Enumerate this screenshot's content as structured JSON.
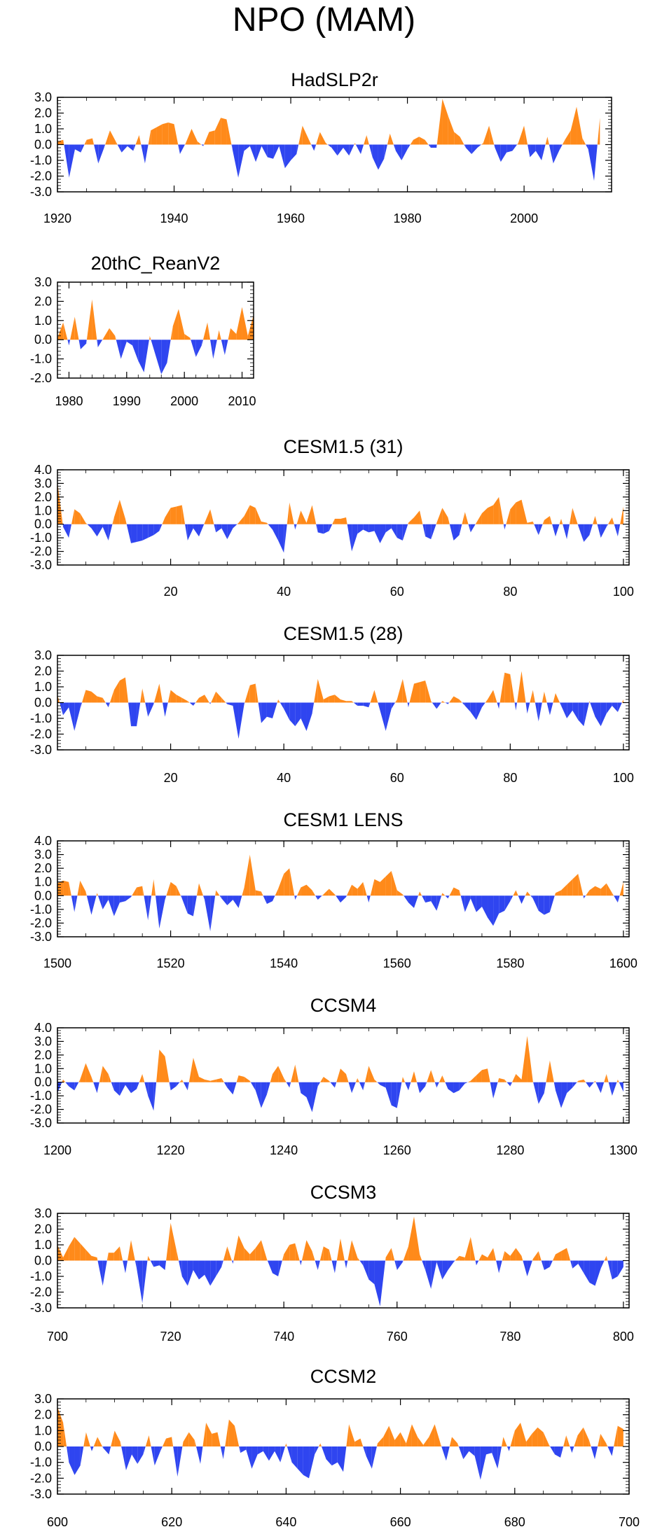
{
  "title": "NPO (MAM)",
  "colors": {
    "positive": "#ff8a1a",
    "negative": "#2f45f0",
    "frame": "#000000"
  },
  "chart_data": [
    {
      "type": "area",
      "title": "HadSLP2r",
      "ylim": [
        -3.0,
        3.0
      ],
      "yticks": [
        "3.0",
        "2.0",
        "1.0",
        "0.0",
        "-1.0",
        "-2.0",
        "-3.0"
      ],
      "xlim": [
        1920,
        2015
      ],
      "xticks": [
        "1920",
        "1940",
        "1960",
        "1980",
        "2000"
      ],
      "x_start": 1920,
      "x_step": 1,
      "values": [
        0.2,
        0.3,
        -2.1,
        -0.3,
        -0.5,
        0.3,
        0.4,
        -1.2,
        -0.2,
        0.9,
        0.2,
        -0.5,
        -0.1,
        -0.4,
        0.6,
        -1.2,
        0.9,
        1.1,
        1.3,
        1.4,
        1.3,
        -0.6,
        0.1,
        1.0,
        0.2,
        -0.1,
        0.8,
        0.9,
        1.7,
        1.6,
        -0.3,
        -2.1,
        -0.4,
        -0.1,
        -1.1,
        -0.1,
        -0.8,
        -0.9,
        -0.1,
        -1.5,
        -1.0,
        -0.6,
        1.2,
        0.4,
        -0.4,
        0.8,
        0.1,
        -0.2,
        -0.7,
        -0.2,
        -0.7,
        0.1,
        -0.6,
        0.6,
        -0.8,
        -1.6,
        -0.9,
        0.7,
        -0.4,
        -1.0,
        -0.3,
        0.3,
        0.5,
        0.3,
        -0.2,
        -0.2,
        2.9,
        1.8,
        0.8,
        0.5,
        -0.2,
        -0.6,
        -0.2,
        0.1,
        1.2,
        -0.2,
        -1.1,
        -0.5,
        -0.4,
        0.1,
        1.2,
        -0.8,
        -0.4,
        -1.0,
        0.5,
        -1.2,
        -0.4,
        0.3,
        0.9,
        2.4,
        0.4,
        -0.3,
        -2.3,
        1.7
      ]
    },
    {
      "type": "area",
      "title": "20thC_ReanV2",
      "ylim": [
        -2.0,
        3.0
      ],
      "yticks": [
        "3.0",
        "2.0",
        "1.0",
        "0.0",
        "-1.0",
        "-2.0"
      ],
      "xlim": [
        1978,
        2012
      ],
      "xticks": [
        "1980",
        "1990",
        "2000",
        "2010"
      ],
      "x_start": 1978,
      "x_step": 1,
      "values": [
        0.1,
        0.9,
        -0.3,
        1.2,
        -0.5,
        -0.2,
        2.1,
        -0.4,
        0.1,
        0.6,
        0.2,
        -1.0,
        -0.1,
        -0.3,
        -1.1,
        -1.7,
        0.2,
        -0.8,
        -1.8,
        -1.2,
        0.7,
        1.6,
        0.3,
        0.1,
        -0.9,
        -0.3,
        0.9,
        -1.0,
        0.5,
        -0.8,
        0.6,
        0.3,
        1.7,
        0.2,
        1.3
      ]
    },
    {
      "type": "area",
      "title": "CESM1.5 (31)",
      "ylim": [
        -3.0,
        4.0
      ],
      "yticks": [
        "4.0",
        "3.0",
        "2.0",
        "1.0",
        "0.0",
        "-1.0",
        "-2.0",
        "-3.0"
      ],
      "xlim": [
        0,
        101
      ],
      "xticks": [
        "20",
        "40",
        "60",
        "80",
        "100"
      ],
      "x_start": 0,
      "x_step": 1,
      "values": [
        3.1,
        -0.2,
        -1.0,
        1.1,
        0.8,
        0.1,
        -0.3,
        -0.9,
        -0.2,
        -1.2,
        0.5,
        1.8,
        0.4,
        -1.4,
        -1.3,
        -1.2,
        -1.0,
        -0.8,
        -0.5,
        0.5,
        1.2,
        1.3,
        1.4,
        -1.2,
        -0.3,
        -0.9,
        0.1,
        1.1,
        -0.6,
        -0.3,
        -1.1,
        -0.3,
        0.1,
        0.6,
        1.4,
        1.2,
        0.2,
        0.1,
        -0.4,
        -1.2,
        -2.1,
        1.6,
        -0.4,
        1.0,
        0.1,
        1.4,
        -0.6,
        -0.7,
        -0.5,
        0.4,
        0.4,
        0.5,
        -2.0,
        -0.7,
        -0.4,
        -0.6,
        -0.5,
        -1.4,
        -0.6,
        -0.3,
        -1.0,
        -1.2,
        0.1,
        0.5,
        1.0,
        -0.9,
        -1.1,
        0.1,
        1.2,
        0.5,
        -1.2,
        -0.8,
        0.9,
        -0.6,
        0.1,
        0.8,
        1.2,
        1.4,
        2.0,
        -0.4,
        1.1,
        1.6,
        1.8,
        0.1,
        0.2,
        -0.8,
        0.3,
        0.6,
        -0.9,
        0.4,
        -1.1,
        1.2,
        -0.1,
        -1.3,
        -0.8,
        0.6,
        -1.0,
        -0.2,
        0.5,
        -0.9,
        1.3
      ]
    },
    {
      "type": "area",
      "title": "CESM1.5 (28)",
      "ylim": [
        -3.0,
        3.0
      ],
      "yticks": [
        "3.0",
        "2.0",
        "1.0",
        "0.0",
        "-1.0",
        "-2.0",
        "-3.0"
      ],
      "xlim": [
        0,
        101
      ],
      "xticks": [
        "20",
        "40",
        "60",
        "80",
        "100"
      ],
      "x_start": 0,
      "x_step": 1,
      "values": [
        0.5,
        -0.8,
        -0.3,
        -1.8,
        -0.4,
        0.8,
        0.7,
        0.4,
        0.3,
        -0.3,
        0.8,
        1.4,
        1.6,
        -1.5,
        -1.5,
        0.9,
        -0.9,
        -0.1,
        1.2,
        -0.9,
        0.8,
        0.5,
        0.3,
        0.1,
        -0.2,
        0.3,
        0.5,
        -0.1,
        0.7,
        0.3,
        -0.1,
        -0.2,
        -2.3,
        -0.1,
        1.1,
        1.2,
        -1.3,
        -0.9,
        -1.0,
        0.2,
        -0.4,
        -1.1,
        -1.5,
        -1.0,
        -1.8,
        -0.7,
        1.5,
        0.2,
        0.4,
        0.5,
        0.2,
        0.1,
        0.1,
        -0.2,
        -0.2,
        -0.3,
        0.8,
        -0.5,
        -1.8,
        -0.4,
        0.2,
        1.5,
        -0.3,
        1.2,
        1.3,
        1.4,
        0.1,
        -0.4,
        0.1,
        -0.1,
        0.4,
        0.2,
        -0.2,
        -0.6,
        -1.1,
        -0.3,
        0.2,
        0.8,
        -0.4,
        1.9,
        1.8,
        -0.5,
        2.0,
        -0.7,
        0.8,
        -1.2,
        0.7,
        -0.8,
        0.6,
        -0.2,
        -1.0,
        -0.5,
        -1.1,
        -1.5,
        0.1,
        -0.9,
        -1.5,
        -0.7,
        -0.2,
        -0.6,
        0.2
      ]
    },
    {
      "type": "area",
      "title": "CESM1 LENS",
      "ylim": [
        -3.0,
        4.0
      ],
      "yticks": [
        "4.0",
        "3.0",
        "2.0",
        "1.0",
        "0.0",
        "-1.0",
        "-2.0",
        "-3.0"
      ],
      "xlim": [
        1500,
        1601
      ],
      "xticks": [
        "1500",
        "1520",
        "1540",
        "1560",
        "1580",
        "1600"
      ],
      "x_start": 1500,
      "x_step": 1,
      "values": [
        0.9,
        1.1,
        1.0,
        -1.2,
        1.1,
        0.3,
        -1.4,
        0.2,
        -1.0,
        -0.3,
        -1.5,
        -0.5,
        -0.4,
        -0.1,
        0.6,
        0.7,
        -1.8,
        1.2,
        -2.4,
        -0.3,
        1.0,
        0.7,
        -0.2,
        -1.3,
        -1.5,
        0.9,
        -0.3,
        -2.6,
        0.4,
        -0.2,
        -0.7,
        -0.3,
        -0.9,
        0.6,
        3.0,
        0.4,
        0.3,
        -0.6,
        -0.4,
        0.5,
        1.6,
        2.0,
        -0.3,
        0.6,
        0.8,
        0.4,
        -0.3,
        0.1,
        0.5,
        0.1,
        -0.5,
        -0.1,
        0.8,
        0.5,
        1.0,
        -0.5,
        1.2,
        1.0,
        1.4,
        1.8,
        0.4,
        0.1,
        -0.5,
        -0.9,
        0.3,
        -0.5,
        -0.4,
        -1.1,
        0.2,
        -0.2,
        0.6,
        0.4,
        -1.2,
        -0.2,
        -1.2,
        -0.8,
        -1.6,
        -2.2,
        -1.3,
        -1.1,
        -0.4,
        0.4,
        -0.6,
        0.3,
        -0.2,
        -1.1,
        -1.4,
        -1.2,
        0.2,
        0.4,
        0.8,
        1.2,
        1.6,
        -0.2,
        0.4,
        0.7,
        0.5,
        0.9,
        0.2,
        -0.5,
        1.0
      ]
    },
    {
      "type": "area",
      "title": "CCSM4",
      "ylim": [
        -3.0,
        4.0
      ],
      "yticks": [
        "4.0",
        "3.0",
        "2.0",
        "1.0",
        "0.0",
        "-1.0",
        "-2.0",
        "-3.0"
      ],
      "xlim": [
        1200,
        1301
      ],
      "xticks": [
        "1200",
        "1220",
        "1240",
        "1260",
        "1280",
        "1300"
      ],
      "x_start": 1200,
      "x_step": 1,
      "values": [
        -0.8,
        0.2,
        -0.3,
        -0.6,
        0.2,
        1.4,
        0.4,
        -0.8,
        1.2,
        0.6,
        -0.6,
        -1.0,
        -0.2,
        -0.8,
        -0.5,
        0.6,
        -1.0,
        -2.1,
        2.4,
        1.9,
        -0.6,
        -0.3,
        0.2,
        -0.6,
        1.8,
        0.4,
        0.2,
        0.1,
        0.2,
        0.3,
        -0.4,
        -0.9,
        0.5,
        0.4,
        0.1,
        -0.6,
        -1.9,
        -0.9,
        0.6,
        1.2,
        0.3,
        -0.4,
        1.3,
        -0.8,
        -1.1,
        -2.2,
        -0.3,
        0.4,
        0.1,
        -0.4,
        1.0,
        0.6,
        -0.8,
        0.3,
        -0.6,
        1.2,
        0.2,
        -0.2,
        -0.4,
        -1.7,
        -1.9,
        0.4,
        -0.6,
        0.8,
        -0.8,
        -0.3,
        0.9,
        -0.4,
        0.5,
        -0.5,
        -0.8,
        -0.6,
        -0.1,
        0.1,
        0.5,
        0.9,
        1.0,
        -1.2,
        0.3,
        0.2,
        -0.3,
        0.6,
        0.2,
        3.4,
        0.1,
        -1.6,
        -0.8,
        1.6,
        -0.6,
        -1.9,
        -0.8,
        -0.4,
        0.1,
        0.2,
        -0.4,
        0.1,
        -0.8,
        0.6,
        -1.0,
        0.2,
        -0.7
      ]
    },
    {
      "type": "area",
      "title": "CCSM3",
      "ylim": [
        -3.0,
        3.0
      ],
      "yticks": [
        "3.0",
        "2.0",
        "1.0",
        "0.0",
        "-1.0",
        "-2.0",
        "-3.0"
      ],
      "xlim": [
        700,
        801
      ],
      "xticks": [
        "700",
        "720",
        "740",
        "760",
        "780",
        "800"
      ],
      "x_start": 700,
      "x_step": 1,
      "values": [
        1.0,
        0.2,
        0.9,
        1.5,
        1.1,
        0.7,
        0.3,
        0.2,
        -1.6,
        0.5,
        0.5,
        0.9,
        -0.8,
        1.3,
        -0.5,
        -2.7,
        0.3,
        -0.4,
        -0.3,
        -0.6,
        2.4,
        0.7,
        -1.0,
        -1.6,
        -0.6,
        -1.2,
        -0.9,
        -1.6,
        -1.0,
        -0.4,
        0.9,
        -0.2,
        1.6,
        0.8,
        0.4,
        0.8,
        1.3,
        0.1,
        -0.8,
        -1.0,
        0.4,
        1.0,
        1.1,
        -0.3,
        1.3,
        0.6,
        -0.6,
        0.9,
        0.7,
        -0.8,
        1.4,
        -0.5,
        1.3,
        0.2,
        -0.3,
        -1.2,
        -1.5,
        -2.9,
        0.2,
        0.8,
        -0.6,
        -0.1,
        0.9,
        2.8,
        0.4,
        -0.6,
        -1.8,
        -0.1,
        -1.2,
        -0.6,
        -0.1,
        0.3,
        0.2,
        1.5,
        -0.3,
        0.4,
        0.2,
        0.8,
        -0.8,
        0.6,
        0.3,
        0.8,
        0.3,
        -1.0,
        0.1,
        0.6,
        -0.6,
        -0.4,
        0.4,
        0.6,
        0.8,
        -0.5,
        -0.2,
        -0.8,
        -1.4,
        -1.6,
        -0.5,
        0.3,
        -1.2,
        -1.0,
        -0.4
      ]
    },
    {
      "type": "area",
      "title": "CCSM2",
      "ylim": [
        -3.0,
        3.0
      ],
      "yticks": [
        "3.0",
        "2.0",
        "1.0",
        "0.0",
        "-1.0",
        "-2.0",
        "-3.0"
      ],
      "xlim": [
        600,
        700
      ],
      "xticks": [
        "600",
        "620",
        "640",
        "660",
        "680",
        "700"
      ],
      "x_start": 600,
      "x_step": 1,
      "values": [
        2.5,
        1.5,
        -1.0,
        -1.8,
        -1.2,
        0.9,
        -0.3,
        0.6,
        -0.1,
        -0.5,
        1.0,
        0.3,
        -1.5,
        -0.5,
        -1.1,
        -0.5,
        0.7,
        -1.2,
        -0.3,
        0.5,
        0.6,
        -1.9,
        0.3,
        0.9,
        0.4,
        -1.1,
        1.5,
        0.8,
        0.9,
        -0.8,
        1.7,
        1.3,
        -0.4,
        -0.2,
        -1.4,
        -0.5,
        -0.3,
        -0.9,
        -0.3,
        -1.0,
        0.2,
        -1.0,
        -1.4,
        -1.8,
        -2.0,
        -0.5,
        0.2,
        -0.8,
        -1.2,
        -1.0,
        -1.6,
        1.4,
        0.3,
        0.5,
        -0.6,
        -1.4,
        0.2,
        0.6,
        1.3,
        0.4,
        0.9,
        0.2,
        1.4,
        0.6,
        0.1,
        0.6,
        1.4,
        0.2,
        -0.9,
        0.6,
        0.2,
        -0.8,
        -0.3,
        -0.6,
        -2.1,
        -0.5,
        -0.4,
        -1.4,
        0.6,
        -0.3,
        1.0,
        1.5,
        0.3,
        0.8,
        1.2,
        0.9,
        0.1,
        -0.5,
        -0.7,
        0.7,
        -0.4,
        0.7,
        1.2,
        0.4,
        -0.8,
        0.8,
        0.2,
        -0.6,
        1.3,
        1.1
      ]
    }
  ]
}
